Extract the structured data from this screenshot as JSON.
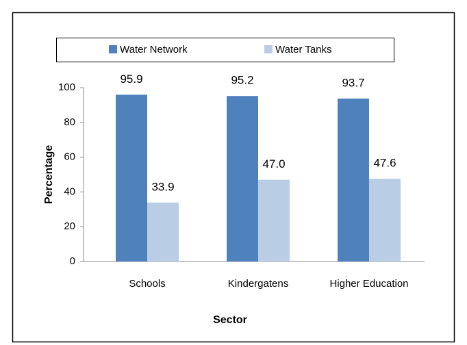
{
  "chart_data": {
    "type": "bar",
    "categories": [
      "Schools",
      "Kindergatens",
      "Higher Education"
    ],
    "series": [
      {
        "name": "Water Network",
        "color": "#4f81bd",
        "values": [
          95.9,
          95.2,
          93.7
        ],
        "value_labels": [
          "95.9",
          "95.2",
          "93.7"
        ]
      },
      {
        "name": "Water Tanks",
        "color": "#b9cde5",
        "values": [
          33.9,
          47.0,
          47.6
        ],
        "value_labels": [
          "33.9",
          "47.0",
          "47.6"
        ]
      }
    ],
    "ylabel": "Percentage",
    "xlabel": "Sector",
    "ylim": [
      0,
      100
    ],
    "yticks": [
      0,
      20,
      40,
      60,
      80,
      100
    ],
    "grid": false,
    "legend": "top"
  }
}
